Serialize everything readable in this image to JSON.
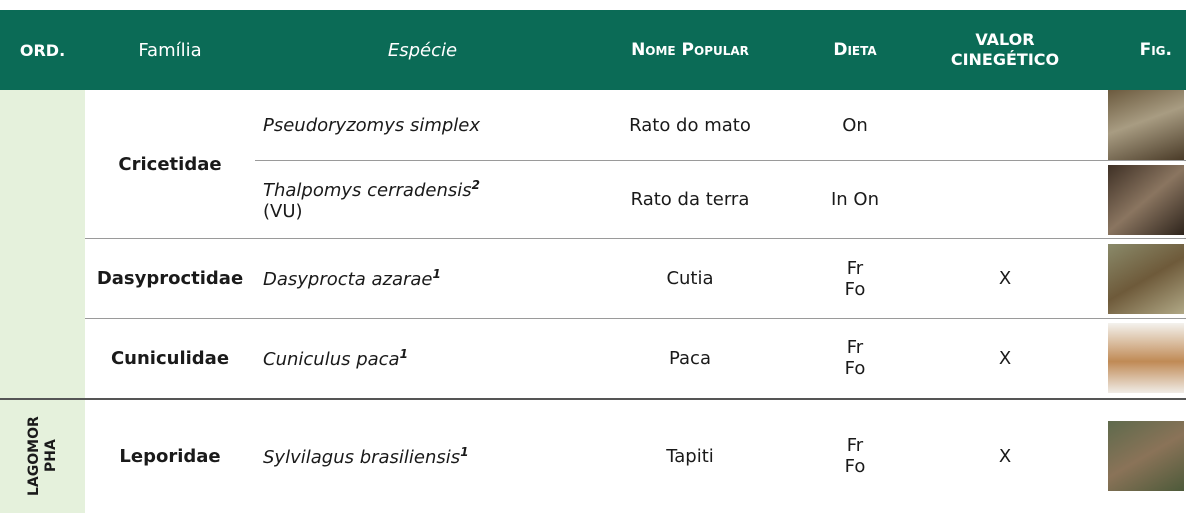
{
  "header": {
    "columns": [
      "ORD.",
      "Família",
      "Espécie",
      "Nome Popular",
      "Dieta",
      "VALOR CINEGÉTICO",
      "Fig."
    ]
  },
  "orders": [
    {
      "families": [
        {
          "name": "Cricetidae",
          "species": [
            {
              "name": "Pseudoryzomys simplex",
              "popular": "Rato do mato",
              "diet": "On"
            },
            {
              "name": "Thalpomys cerradensis",
              "note": "2",
              "status": "(VU)",
              "popular": "Rato da terra",
              "diet": "In On"
            }
          ]
        },
        {
          "name": "Dasyproctidae",
          "species": [
            {
              "name": "Dasyprocta azarae",
              "note": "1",
              "popular": "Cutia",
              "diet": "Fr\nFo",
              "game": "X"
            }
          ]
        },
        {
          "name": "Cuniculidae",
          "species": [
            {
              "name": "Cuniculus paca",
              "note": "1",
              "popular": "Paca",
              "diet": "Fr\nFo",
              "game": "X"
            }
          ]
        }
      ]
    },
    {
      "name": "LAGOMORPHA",
      "families": [
        {
          "name": "Leporidae",
          "species": [
            {
              "name": "Sylvilagus brasiliensis",
              "note": "1",
              "popular": "Tapiti",
              "diet": "Fr\nFo",
              "game": "X"
            }
          ]
        }
      ]
    }
  ]
}
